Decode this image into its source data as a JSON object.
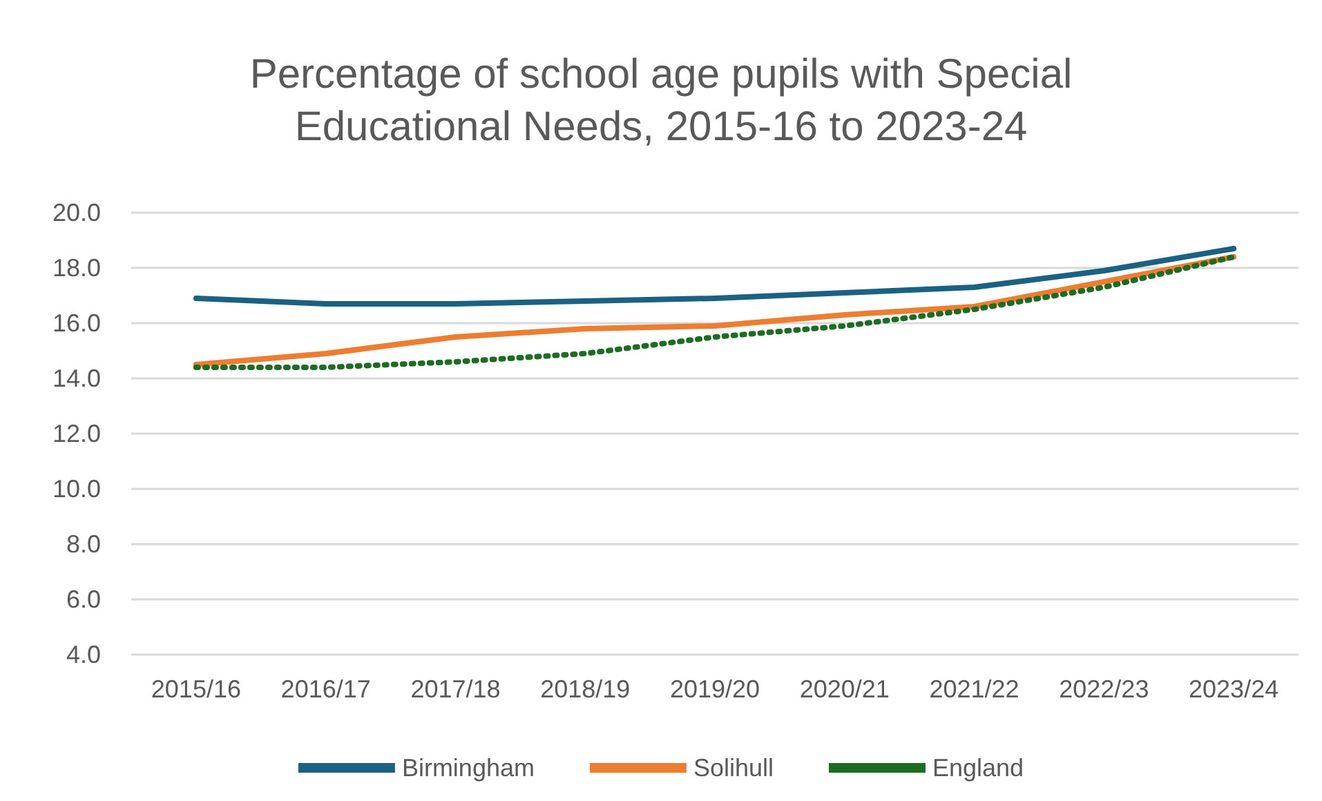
{
  "chart_data": {
    "type": "line",
    "title": "Percentage of school age pupils with Special\nEducational Needs, 2015-16 to 2023-24",
    "categories": [
      "2015/16",
      "2016/17",
      "2017/18",
      "2018/19",
      "2019/20",
      "2020/21",
      "2021/22",
      "2022/23",
      "2023/24"
    ],
    "series": [
      {
        "name": "Birmingham",
        "color": "#1a6184",
        "line_style": "solid",
        "values": [
          16.9,
          16.7,
          16.7,
          16.8,
          16.9,
          17.1,
          17.3,
          17.9,
          18.7
        ]
      },
      {
        "name": "Solihull",
        "color": "#ed7d31",
        "line_style": "solid",
        "values": [
          14.5,
          14.9,
          15.5,
          15.8,
          15.9,
          16.3,
          16.6,
          17.5,
          18.4
        ]
      },
      {
        "name": "England",
        "color": "#1e6b23",
        "line_style": "dotted",
        "values": [
          14.4,
          14.4,
          14.6,
          14.9,
          15.5,
          15.9,
          16.5,
          17.3,
          18.4
        ]
      }
    ],
    "ylim": [
      4,
      20
    ],
    "yticks": [
      {
        "value": 4,
        "label": "4.0"
      },
      {
        "value": 6,
        "label": "6.0"
      },
      {
        "value": 8,
        "label": "8.0"
      },
      {
        "value": 10,
        "label": "10.0"
      },
      {
        "value": 12,
        "label": "12.0"
      },
      {
        "value": 14,
        "label": "14.0"
      },
      {
        "value": 16,
        "label": "16.0"
      },
      {
        "value": 18,
        "label": "18.0"
      },
      {
        "value": 20,
        "label": "20.0"
      }
    ],
    "grid": "y",
    "legend": "bottom",
    "marker": "none"
  }
}
